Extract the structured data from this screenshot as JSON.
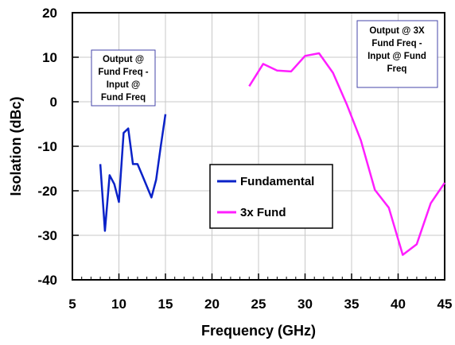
{
  "chart_data": {
    "type": "line",
    "xlabel": "Frequency (GHz)",
    "ylabel": "Isolation (dBc)",
    "xlim": [
      5,
      45
    ],
    "ylim": [
      -40,
      20
    ],
    "x_ticks": [
      "5",
      "10",
      "15",
      "20",
      "25",
      "30",
      "35",
      "40",
      "45"
    ],
    "y_ticks": [
      "20",
      "10",
      "0",
      "-10",
      "-20",
      "-30",
      "-40"
    ],
    "grid": true,
    "legend_placement": "center-right",
    "series": [
      {
        "name": "Fundamental",
        "color": "#0a22c8",
        "x": [
          8,
          8.5,
          9,
          9.5,
          10,
          10.5,
          11,
          11.5,
          12,
          12.5,
          13,
          13.5,
          14,
          14.5,
          15
        ],
        "y": [
          -14,
          -29,
          -16.5,
          -18.5,
          -22.5,
          -7,
          -6,
          -14,
          -14,
          -16.5,
          -19,
          -21.5,
          -17.5,
          -10,
          -2.8
        ]
      },
      {
        "name": "3x Fund",
        "color": "#ff1eff",
        "x": [
          24,
          25.5,
          27,
          28.5,
          30,
          31.5,
          33,
          34.5,
          36,
          37.5,
          39,
          40.5,
          42,
          43.5,
          45
        ],
        "y": [
          3.5,
          8.5,
          7,
          6.8,
          10.3,
          10.9,
          6.5,
          -0.7,
          -8.7,
          -19.8,
          -23.8,
          -34.4,
          -32,
          -22.8,
          -18.2
        ]
      }
    ],
    "annotations": [
      {
        "lines": [
          "Output @",
          "Fund Freq -",
          "Input @",
          "Fund Freq"
        ]
      },
      {
        "lines": [
          "Output @ 3X",
          "Fund Freq -",
          "Input @ Fund",
          "Freq"
        ]
      }
    ]
  }
}
